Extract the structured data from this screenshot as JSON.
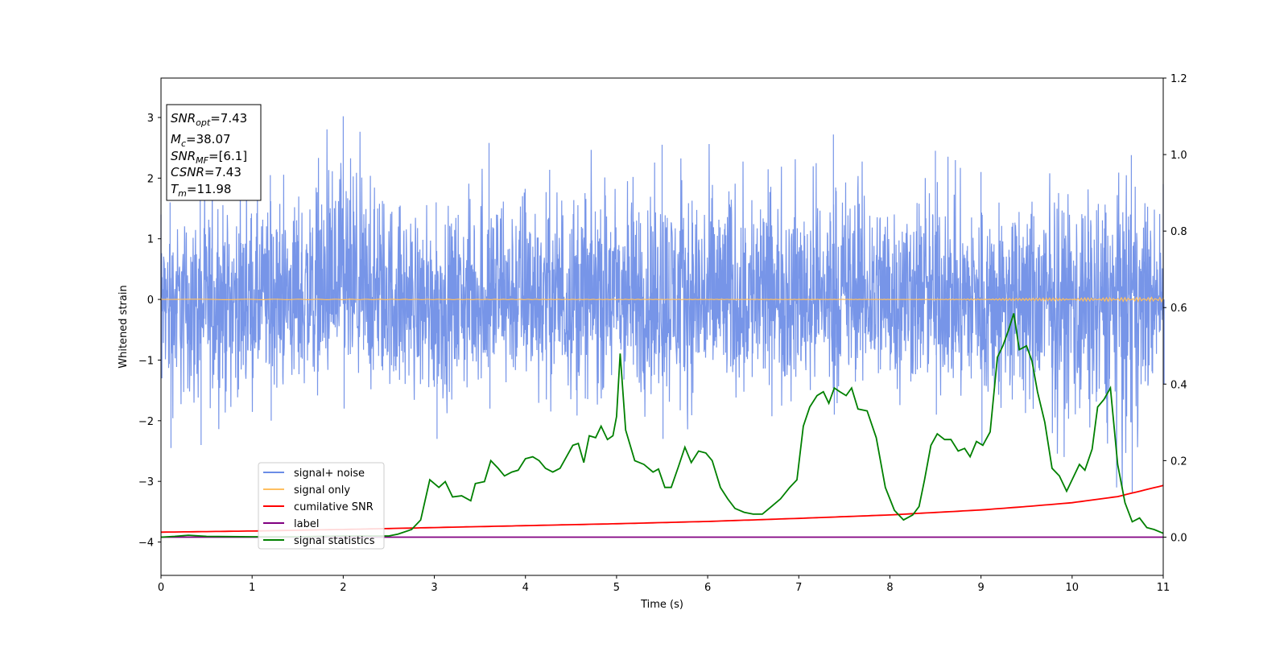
{
  "chart_data": {
    "type": "line",
    "title": "",
    "xlabel": "Time (s)",
    "ylabel": "Whitened strain",
    "xlim": [
      0,
      11
    ],
    "ylim_left": [
      -4.55,
      3.65
    ],
    "ylim_right": [
      -0.1,
      1.2
    ],
    "xticks": [
      0,
      1,
      2,
      3,
      4,
      5,
      6,
      7,
      8,
      9,
      10,
      11
    ],
    "yticks_left": [
      -4,
      -3,
      -2,
      -1,
      0,
      1,
      2,
      3
    ],
    "yticks_right": [
      0.0,
      0.2,
      0.4,
      0.6,
      0.8,
      1.0,
      1.2
    ],
    "grid": false,
    "legend_position": "lower-left",
    "colors": {
      "signal_noise": "#6b8ce6",
      "signal_only": "#ffbf60",
      "cumulative_snr": "#ff0000",
      "label": "#800080",
      "signal_statistics": "#008000"
    },
    "annotation": {
      "snr_opt": {
        "base": "SNR",
        "sub": "opt",
        "value": "=7.43"
      },
      "mc": {
        "base": "M",
        "sub": "c",
        "value": "=38.07"
      },
      "snr_mf": {
        "base": "SNR",
        "sub": "MF",
        "value": "=[6.1]"
      },
      "csnr": {
        "base": "CSNR",
        "value": "=7.43"
      },
      "tm": {
        "base": "T",
        "sub": "m",
        "value": "=11.98"
      }
    },
    "series": [
      {
        "name": "signal+ noise",
        "axis": "left",
        "description_values": "dense whitened noise, approx. |amplitude| up to 3.0",
        "envelope": [
          {
            "x": 0.0,
            "min": -1.3,
            "max": 1.4
          },
          {
            "x": 0.1,
            "min": -2.45,
            "max": 1.6
          },
          {
            "x": 0.43,
            "min": -2.4,
            "max": 1.9
          },
          {
            "x": 1.2,
            "min": -2.0,
            "max": 2.05
          },
          {
            "x": 2.0,
            "min": -1.8,
            "max": 3.02
          },
          {
            "x": 3.02,
            "min": -2.3,
            "max": 1.6
          },
          {
            "x": 3.6,
            "min": -1.8,
            "max": 2.58
          },
          {
            "x": 5.5,
            "min": -2.3,
            "max": 2.55
          },
          {
            "x": 7.38,
            "min": -1.9,
            "max": 2.72
          },
          {
            "x": 8.5,
            "min": -1.9,
            "max": 2.45
          },
          {
            "x": 9.0,
            "min": -2.4,
            "max": 2.1
          },
          {
            "x": 10.65,
            "min": -3.2,
            "max": 2.38
          },
          {
            "x": 11.0,
            "min": -1.4,
            "max": 1.9
          }
        ]
      },
      {
        "name": "signal only",
        "axis": "left",
        "x": [
          0,
          11
        ],
        "y": [
          0,
          0
        ],
        "note": "small chirp oscillation near end"
      },
      {
        "name": "cumilative SNR",
        "axis": "right",
        "x": [
          0,
          1,
          2,
          3,
          4,
          5,
          6,
          7,
          8,
          9,
          9.5,
          10,
          10.5,
          11
        ],
        "y": [
          0.013,
          0.016,
          0.02,
          0.025,
          0.03,
          0.035,
          0.041,
          0.049,
          0.058,
          0.071,
          0.08,
          0.09,
          0.106,
          0.135
        ]
      },
      {
        "name": "label",
        "axis": "right",
        "x": [
          0,
          11
        ],
        "y": [
          0.0,
          0.0
        ]
      },
      {
        "name": "signal statistics",
        "axis": "right",
        "x": [
          0.0,
          0.15,
          0.3,
          0.5,
          1.0,
          1.5,
          2.0,
          2.5,
          2.6,
          2.75,
          2.85,
          2.95,
          3.05,
          3.12,
          3.2,
          3.3,
          3.4,
          3.45,
          3.55,
          3.62,
          3.7,
          3.77,
          3.85,
          3.92,
          4.0,
          4.08,
          4.15,
          4.22,
          4.3,
          4.38,
          4.45,
          4.52,
          4.58,
          4.64,
          4.7,
          4.77,
          4.83,
          4.9,
          4.96,
          5.0,
          5.04,
          5.1,
          5.2,
          5.3,
          5.4,
          5.46,
          5.53,
          5.6,
          5.68,
          5.75,
          5.82,
          5.9,
          5.98,
          6.05,
          6.14,
          6.22,
          6.3,
          6.4,
          6.5,
          6.6,
          6.7,
          6.8,
          6.9,
          6.98,
          7.05,
          7.12,
          7.2,
          7.27,
          7.33,
          7.39,
          7.45,
          7.52,
          7.58,
          7.65,
          7.75,
          7.85,
          7.95,
          8.05,
          8.15,
          8.25,
          8.32,
          8.38,
          8.45,
          8.52,
          8.6,
          8.67,
          8.75,
          8.82,
          8.88,
          8.95,
          9.02,
          9.1,
          9.18,
          9.24,
          9.3,
          9.36,
          9.42,
          9.5,
          9.56,
          9.62,
          9.7,
          9.78,
          9.86,
          9.94,
          10.02,
          10.08,
          10.14,
          10.22,
          10.28,
          10.35,
          10.42,
          10.5,
          10.58,
          10.66,
          10.74,
          10.82,
          10.9,
          11.0
        ],
        "y": [
          0.0,
          0.002,
          0.005,
          0.002,
          0.001,
          0.001,
          0.003,
          0.003,
          0.008,
          0.02,
          0.045,
          0.15,
          0.13,
          0.145,
          0.105,
          0.108,
          0.095,
          0.14,
          0.145,
          0.2,
          0.18,
          0.16,
          0.17,
          0.175,
          0.205,
          0.21,
          0.2,
          0.18,
          0.17,
          0.18,
          0.21,
          0.24,
          0.245,
          0.195,
          0.265,
          0.26,
          0.29,
          0.255,
          0.265,
          0.315,
          0.48,
          0.28,
          0.2,
          0.19,
          0.17,
          0.178,
          0.13,
          0.13,
          0.185,
          0.235,
          0.195,
          0.225,
          0.22,
          0.2,
          0.13,
          0.1,
          0.075,
          0.065,
          0.06,
          0.06,
          0.08,
          0.1,
          0.13,
          0.15,
          0.29,
          0.34,
          0.37,
          0.38,
          0.35,
          0.39,
          0.38,
          0.37,
          0.39,
          0.335,
          0.33,
          0.26,
          0.13,
          0.07,
          0.045,
          0.058,
          0.08,
          0.15,
          0.24,
          0.27,
          0.255,
          0.255,
          0.225,
          0.232,
          0.21,
          0.25,
          0.24,
          0.275,
          0.47,
          0.5,
          0.54,
          0.585,
          0.49,
          0.5,
          0.46,
          0.38,
          0.3,
          0.18,
          0.16,
          0.12,
          0.16,
          0.19,
          0.175,
          0.23,
          0.34,
          0.36,
          0.39,
          0.19,
          0.09,
          0.04,
          0.05,
          0.025,
          0.02,
          0.01
        ]
      }
    ]
  }
}
